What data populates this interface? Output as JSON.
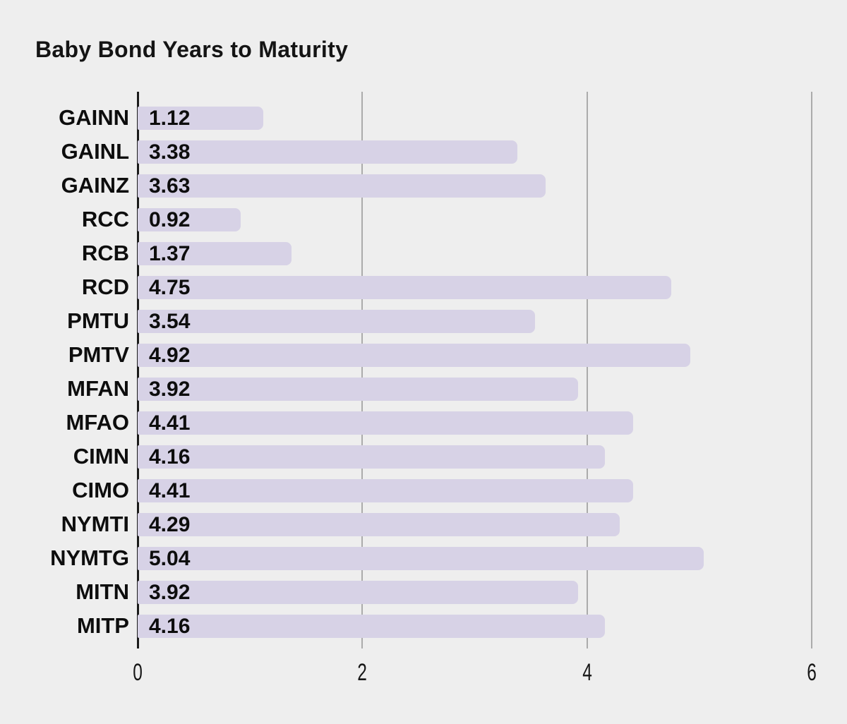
{
  "chart_data": {
    "type": "bar",
    "orientation": "horizontal",
    "title": "Baby Bond Years to Maturity",
    "categories": [
      "GAINN",
      "GAINL",
      "GAINZ",
      "RCC",
      "RCB",
      "RCD",
      "PMTU",
      "PMTV",
      "MFAN",
      "MFAO",
      "CIMN",
      "CIMO",
      "NYMTI",
      "NYMTG",
      "MITN",
      "MITP"
    ],
    "values": [
      1.12,
      3.38,
      3.63,
      0.92,
      1.37,
      4.75,
      3.54,
      4.92,
      3.92,
      4.41,
      4.16,
      4.41,
      4.29,
      5.04,
      3.92,
      4.16
    ],
    "value_label_format": "2-decimal",
    "xlabel": "",
    "ylabel": "",
    "xlim": [
      0,
      6
    ],
    "x_ticks": [
      0,
      2,
      4,
      6
    ],
    "x_tick_labels": [
      "0",
      "2",
      "4",
      "6"
    ],
    "grid": true,
    "legend": false,
    "value_labels_inside_bars": true,
    "colors": {
      "bar": "#d7d2e6",
      "background": "#eeeeee",
      "grid_line": "#ababab",
      "axis_line": "#1b1b1b",
      "text": "#0d0d0d"
    }
  }
}
